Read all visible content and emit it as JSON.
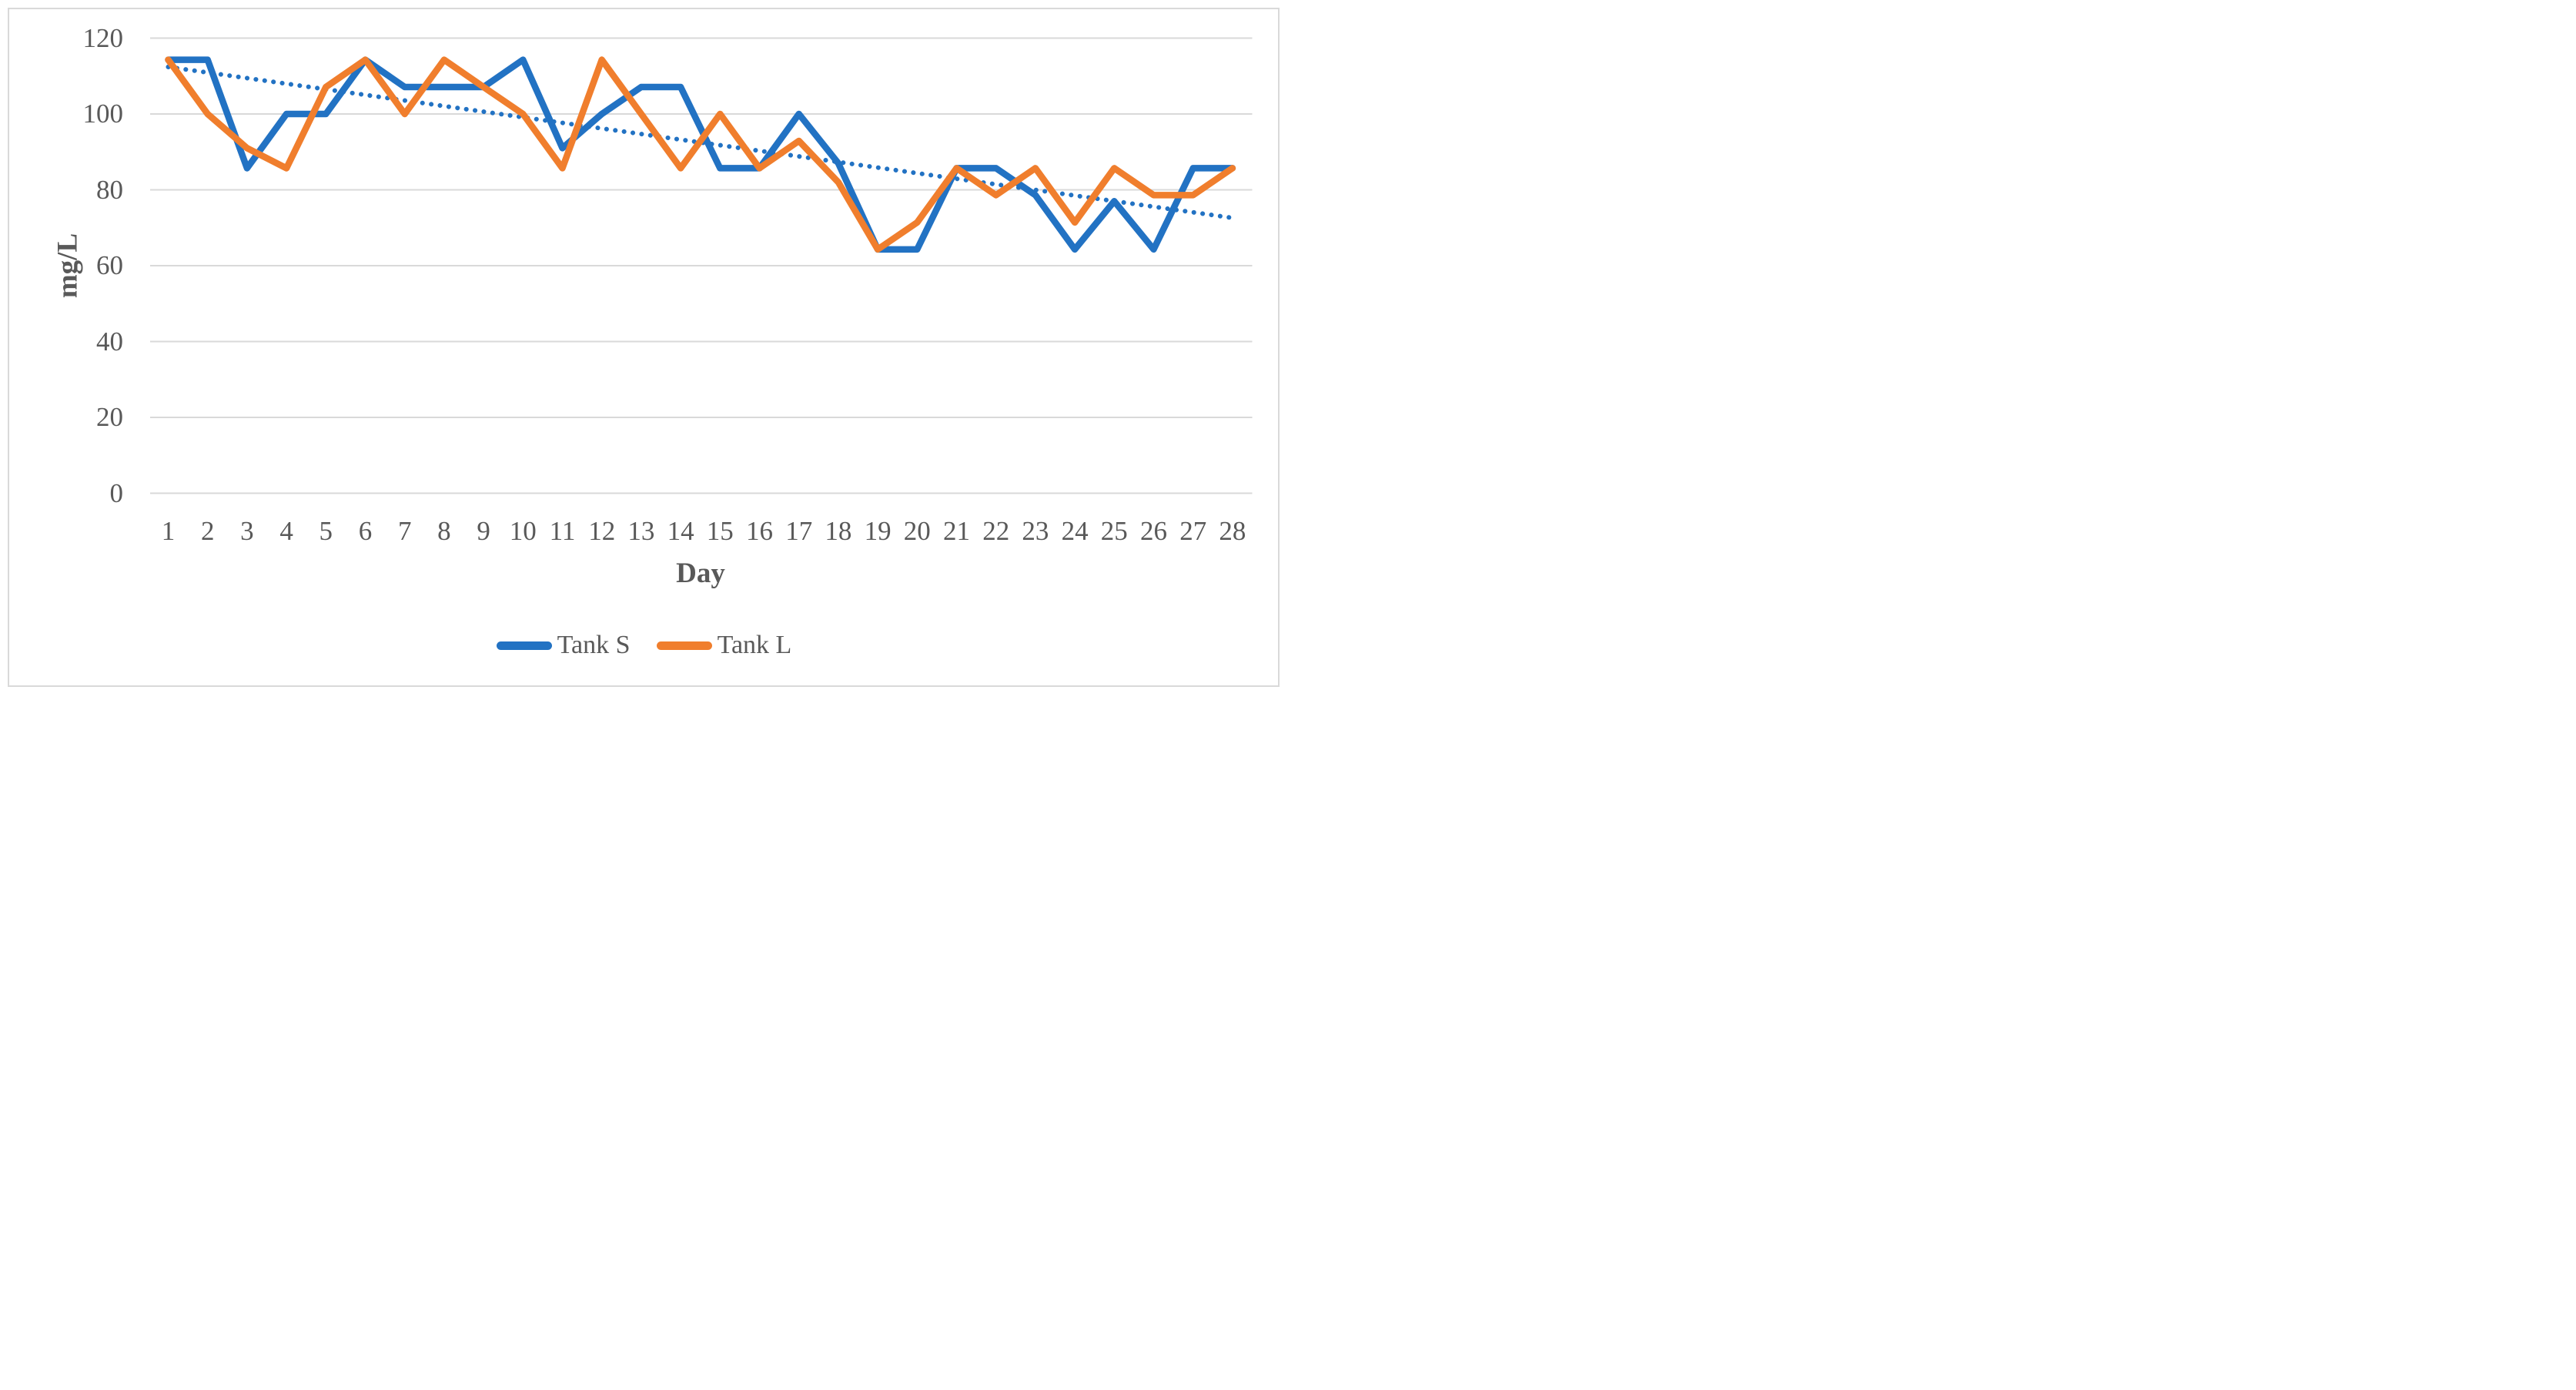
{
  "figure": {
    "background_color": "#FFFFFF",
    "frame_border_color": "#D9D9D9",
    "gridline_color": "#D9D9D9",
    "text_color": "#595959"
  },
  "chart_data": {
    "type": "line",
    "title": "",
    "xlabel": "Day",
    "ylabel": "mg/L",
    "x": [
      1,
      2,
      3,
      4,
      5,
      6,
      7,
      8,
      9,
      10,
      11,
      12,
      13,
      14,
      15,
      16,
      17,
      18,
      19,
      20,
      21,
      22,
      23,
      24,
      25,
      26,
      27,
      28
    ],
    "series": [
      {
        "name": "Tank S",
        "color": "#2272C3",
        "values": [
          114.3,
          114.3,
          85.7,
          100,
          100,
          114.3,
          107.1,
          107.1,
          107.1,
          114.3,
          91,
          100,
          107.1,
          107.1,
          85.7,
          85.7,
          100,
          87,
          64.3,
          64.3,
          85.7,
          85.7,
          78.6,
          64.3,
          77,
          64.3,
          85.7,
          85.7
        ]
      },
      {
        "name": "Tank L",
        "color": "#F07E2D",
        "values": [
          114.3,
          100,
          91,
          85.7,
          107.1,
          114.3,
          100,
          114.3,
          107.1,
          100,
          85.7,
          114.3,
          100,
          85.7,
          100,
          85.7,
          92.9,
          82,
          64.3,
          71.4,
          85.7,
          78.6,
          85.7,
          71.4,
          85.7,
          78.6,
          78.6,
          85.7
        ]
      }
    ],
    "trendline": {
      "for_series": "Tank S",
      "style": "dotted",
      "color": "#2272C3",
      "start_value": 112.4,
      "end_value": 72.6
    },
    "ylim": [
      0,
      120
    ],
    "yticks": [
      0,
      20,
      40,
      60,
      80,
      100,
      120
    ],
    "grid": "horizontal",
    "legend_position": "bottom",
    "legend_items": [
      "Tank S",
      "Tank L"
    ]
  }
}
